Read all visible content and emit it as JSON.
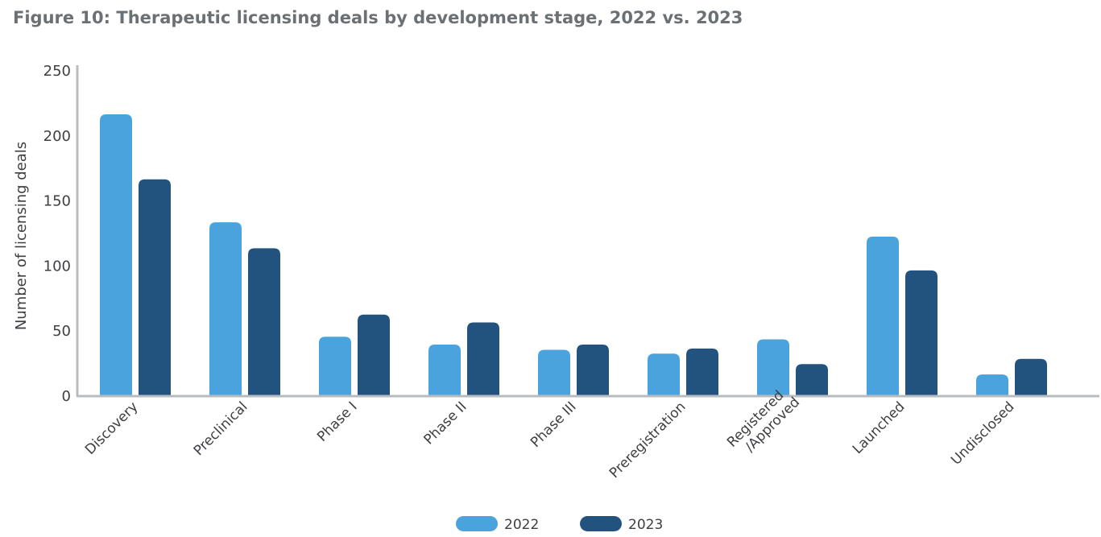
{
  "title": "Figure 10: Therapeutic licensing deals by development stage, 2022 vs. 2023",
  "colors": {
    "series_2022": "#4aa3dc",
    "series_2023": "#22537f",
    "axis": "#b9bcbf"
  },
  "chart_data": {
    "type": "bar",
    "title": "Figure 10: Therapeutic licensing deals by development stage, 2022 vs. 2023",
    "xlabel": "",
    "ylabel": "Number of licensing deals",
    "ylim": [
      0,
      250
    ],
    "yticks": [
      0,
      50,
      100,
      150,
      200,
      250
    ],
    "grid": false,
    "legend_position": "bottom-center",
    "categories": [
      [
        "Discovery"
      ],
      [
        "Preclinical"
      ],
      [
        "Phase I"
      ],
      [
        "Phase II"
      ],
      [
        "Phase III"
      ],
      [
        "Preregistration"
      ],
      [
        "Registered",
        "/Approved"
      ],
      [
        "Launched"
      ],
      [
        "Undisclosed"
      ]
    ],
    "series": [
      {
        "name": "2022",
        "values": [
          216,
          133,
          45,
          39,
          35,
          32,
          43,
          122,
          16
        ]
      },
      {
        "name": "2023",
        "values": [
          166,
          113,
          62,
          56,
          39,
          36,
          24,
          96,
          28
        ]
      }
    ]
  }
}
